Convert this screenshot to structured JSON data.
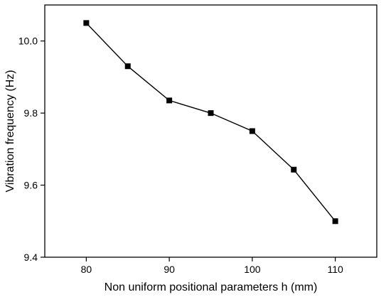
{
  "chart_data": {
    "type": "line",
    "title": "",
    "xlabel": "Non uniform positional parameters h (mm)",
    "ylabel": "Vibration frequency (Hz)",
    "xlim": [
      75,
      115
    ],
    "ylim": [
      9.4,
      10.1
    ],
    "x_ticks": [
      80,
      90,
      100,
      110
    ],
    "x_tick_labels": [
      "80",
      "90",
      "100",
      "110"
    ],
    "y_ticks": [
      9.4,
      9.6,
      9.8,
      10.0
    ],
    "y_tick_labels": [
      "9.4",
      "9.6",
      "9.8",
      "10.0"
    ],
    "grid": false,
    "legend": "none",
    "marker": "square",
    "color": "#000000",
    "series": [
      {
        "x": [
          80,
          85,
          90,
          95,
          100,
          105,
          110
        ],
        "y": [
          10.05,
          9.93,
          9.835,
          9.8,
          9.75,
          9.643,
          9.5
        ]
      }
    ]
  }
}
